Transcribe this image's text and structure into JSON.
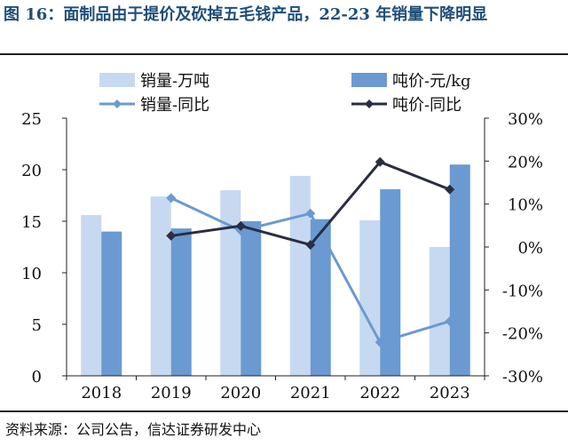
{
  "figure": {
    "title": "图 16：面制品由于提价及砍掉五毛钱产品，22-23 年销量下降明显",
    "source": "资料来源：公司公告，信达证券研发中心"
  },
  "colors": {
    "title": "#1f4e79",
    "bar_sales": "#c6d9f0",
    "bar_price": "#6a9ad1",
    "line_sales_yoy": "#6a9ad1",
    "line_price_yoy": "#2b2d42"
  },
  "chart_data": {
    "type": "bar",
    "categories": [
      "2018",
      "2019",
      "2020",
      "2021",
      "2022",
      "2023"
    ],
    "series": [
      {
        "name": "销量-万吨",
        "kind": "bar",
        "axis": "left",
        "values": [
          15.6,
          17.4,
          18.0,
          19.4,
          15.1,
          12.5
        ]
      },
      {
        "name": "吨价-元/kg",
        "kind": "bar",
        "axis": "left",
        "values": [
          14.0,
          14.3,
          15.0,
          15.2,
          18.1,
          20.5
        ]
      },
      {
        "name": "销量-同比",
        "kind": "line",
        "axis": "right",
        "values": [
          null,
          11.4,
          3.8,
          7.8,
          -22.2,
          -17.3
        ]
      },
      {
        "name": "吨价-同比",
        "kind": "line",
        "axis": "right",
        "values": [
          null,
          2.6,
          4.9,
          0.5,
          19.8,
          13.4
        ]
      }
    ],
    "y_left": {
      "min": 0,
      "max": 25,
      "ticks": [
        0,
        5,
        10,
        15,
        20,
        25
      ],
      "tick_labels": [
        "0",
        "5",
        "10",
        "15",
        "20",
        "25"
      ]
    },
    "y_right": {
      "min": -30,
      "max": 30,
      "ticks": [
        -30,
        -20,
        -10,
        0,
        10,
        20,
        30
      ],
      "tick_labels": [
        "-30%",
        "-20%",
        "-10%",
        "0%",
        "10%",
        "20%",
        "30%"
      ]
    },
    "legend_position": "top",
    "grid": false
  }
}
